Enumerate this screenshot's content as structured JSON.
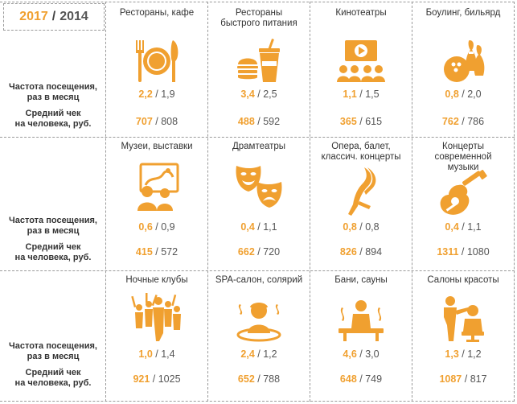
{
  "header": {
    "year_current": "2017",
    "separator": "/",
    "year_previous": "2014"
  },
  "row_labels": {
    "frequency_line1": "Частота посещения,",
    "frequency_line2": "раз в месяц",
    "avg_check_line1": "Средний чек",
    "avg_check_line2": "на человека, руб."
  },
  "accent_color": "#f0a030",
  "categories": [
    {
      "title_line1": "Рестораны, кафе",
      "title_line2": "",
      "icon": "plate-cutlery-icon",
      "freq_2017": "2,2",
      "freq_2014": "1,9",
      "check_2017": "707",
      "check_2014": "808"
    },
    {
      "title_line1": "Рестораны",
      "title_line2": "быстрого питания",
      "icon": "fast-food-icon",
      "freq_2017": "3,4",
      "freq_2014": "2,5",
      "check_2017": "488",
      "check_2014": "592"
    },
    {
      "title_line1": "Кинотеатры",
      "title_line2": "",
      "icon": "cinema-icon",
      "freq_2017": "1,1",
      "freq_2014": "1,5",
      "check_2017": "365",
      "check_2014": "615"
    },
    {
      "title_line1": "Боулинг, бильярд",
      "title_line2": "",
      "icon": "bowling-icon",
      "freq_2017": "0,8",
      "freq_2014": "2,0",
      "check_2017": "762",
      "check_2014": "786"
    },
    {
      "title_line1": "Музеи, выставки",
      "title_line2": "",
      "icon": "museum-painting-icon",
      "freq_2017": "0,6",
      "freq_2014": "0,9",
      "check_2017": "415",
      "check_2014": "572"
    },
    {
      "title_line1": "Драмтеатры",
      "title_line2": "",
      "icon": "theatre-masks-icon",
      "freq_2017": "0,4",
      "freq_2014": "1,1",
      "check_2017": "662",
      "check_2014": "720"
    },
    {
      "title_line1": "Опера, балет,",
      "title_line2": "классич. концерты",
      "icon": "ballet-icon",
      "freq_2017": "0,8",
      "freq_2014": "0,8",
      "check_2017": "826",
      "check_2014": "894"
    },
    {
      "title_line1": "Концерты современной",
      "title_line2": "музыки",
      "icon": "guitar-icon",
      "freq_2017": "0,4",
      "freq_2014": "1,1",
      "check_2017": "1311",
      "check_2014": "1080"
    },
    {
      "title_line1": "Ночные клубы",
      "title_line2": "",
      "icon": "nightclub-crowd-icon",
      "freq_2017": "1,0",
      "freq_2014": "1,4",
      "check_2017": "921",
      "check_2014": "1025"
    },
    {
      "title_line1": "SPA-салон, солярий",
      "title_line2": "",
      "icon": "spa-icon",
      "freq_2017": "2,4",
      "freq_2014": "1,2",
      "check_2017": "652",
      "check_2014": "788"
    },
    {
      "title_line1": "Бани, сауны",
      "title_line2": "",
      "icon": "sauna-icon",
      "freq_2017": "4,6",
      "freq_2014": "3,0",
      "check_2017": "648",
      "check_2014": "749"
    },
    {
      "title_line1": "Салоны красоты",
      "title_line2": "",
      "icon": "hair-salon-icon",
      "freq_2017": "1,3",
      "freq_2014": "1,2",
      "check_2017": "1087",
      "check_2014": "817"
    }
  ]
}
